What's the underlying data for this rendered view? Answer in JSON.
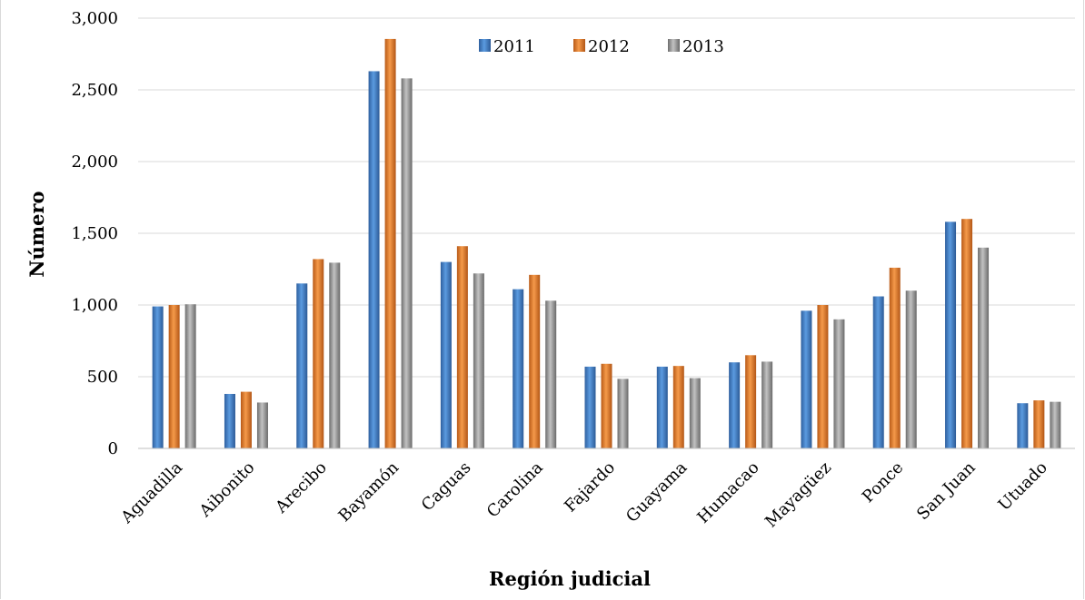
{
  "chart_data": {
    "type": "bar",
    "title": "",
    "xlabel": "Región judicial",
    "ylabel": "Número",
    "ylim": [
      0,
      3000
    ],
    "yticks": [
      0,
      500,
      1000,
      1500,
      2000,
      2500,
      3000
    ],
    "ytick_labels": [
      "0",
      "500",
      "1,000",
      "1,500",
      "2,000",
      "2,500",
      "3,000"
    ],
    "grid": true,
    "legend_position": "top-center",
    "categories": [
      "Aguadilla",
      "Aibonito",
      "Arecibo",
      "Bayamón",
      "Caguas",
      "Carolina",
      "Fajardo",
      "Guayama",
      "Humacao",
      "Mayagüez",
      "Ponce",
      "San Juan",
      "Utuado"
    ],
    "series": [
      {
        "name": "2011",
        "color": "#4a86c8",
        "values": [
          990,
          380,
          1150,
          2630,
          1300,
          1110,
          570,
          570,
          600,
          960,
          1060,
          1580,
          315
        ]
      },
      {
        "name": "2012",
        "color": "#e8802f",
        "values": [
          1000,
          395,
          1320,
          2855,
          1410,
          1210,
          590,
          575,
          650,
          1000,
          1260,
          1600,
          335
        ]
      },
      {
        "name": "2013",
        "color": "#9b9b9b",
        "values": [
          1005,
          320,
          1295,
          2580,
          1220,
          1030,
          485,
          490,
          605,
          900,
          1100,
          1400,
          325
        ]
      }
    ]
  }
}
